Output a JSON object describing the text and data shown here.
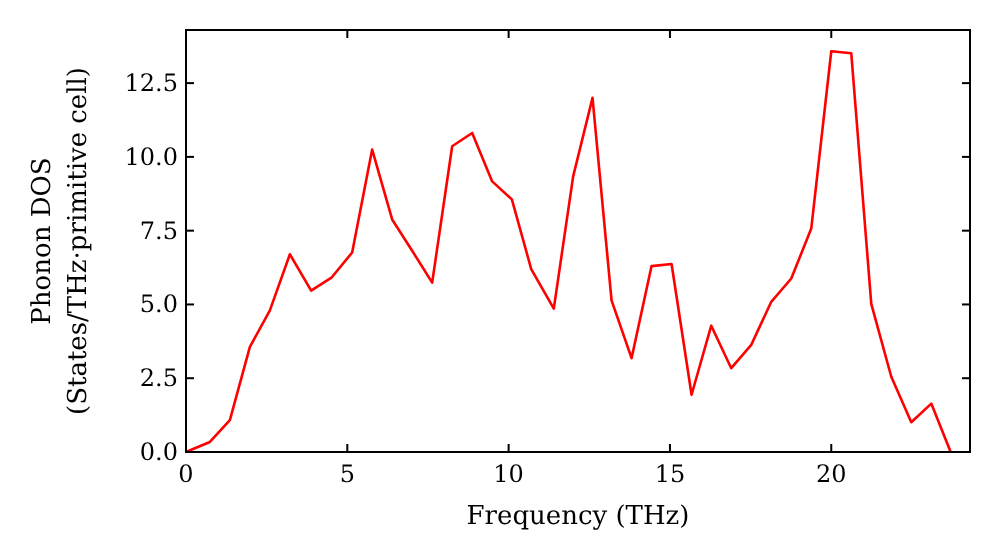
{
  "chart_data": {
    "type": "line",
    "xlabel": "Frequency (THz)",
    "ylabel": "Phonon DOS\n(States/THz·primitive cell)",
    "series": [
      {
        "color": "#ff0000",
        "x": [
          0,
          0.74,
          1.36,
          1.98,
          2.6,
          3.22,
          3.88,
          4.52,
          5.15,
          5.77,
          6.39,
          7.01,
          7.63,
          8.25,
          8.87,
          9.49,
          10.1,
          10.7,
          11.4,
          12.0,
          12.6,
          13.19,
          13.81,
          14.43,
          15.05,
          15.67,
          16.28,
          16.9,
          17.52,
          18.14,
          18.76,
          19.38,
          20.0,
          20.62,
          21.24,
          21.86,
          22.48,
          23.1,
          23.7
        ],
        "values": [
          0,
          0.34,
          1.08,
          3.56,
          4.8,
          6.7,
          5.47,
          5.92,
          6.76,
          10.25,
          7.88,
          6.82,
          5.74,
          10.36,
          10.81,
          9.17,
          8.56,
          6.2,
          4.86,
          9.34,
          12.0,
          5.14,
          3.18,
          6.3,
          6.37,
          1.94,
          4.28,
          2.84,
          3.63,
          5.09,
          5.88,
          7.57,
          13.58,
          13.51,
          5.02,
          2.55,
          1.01,
          1.64,
          0
        ]
      }
    ],
    "xlim": [
      0,
      24.3
    ],
    "ylim": [
      0,
      14.3
    ],
    "xticks": [
      0,
      5,
      10,
      15,
      20
    ],
    "yticks": [
      {
        "value": 0,
        "label": "0.0"
      },
      {
        "value": 2.5,
        "label": "2.5"
      },
      {
        "value": 5,
        "label": "5.0"
      },
      {
        "value": 7.5,
        "label": "7.5"
      },
      {
        "value": 10,
        "label": "10.0"
      },
      {
        "value": 12.5,
        "label": "12.5"
      }
    ],
    "grid": false,
    "marker": "none",
    "line_style": "solid"
  }
}
